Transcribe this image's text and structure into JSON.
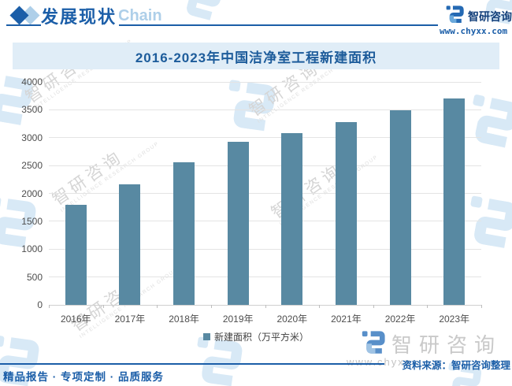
{
  "header": {
    "title": "发展现状",
    "subtitle": "Chain",
    "brand_name": "智研咨询",
    "brand_url": "www.chyxx.com"
  },
  "chart": {
    "title": "2016-2023年中国洁净室工程新建面积",
    "legend": "新建面积（万平方米）"
  },
  "chart_data": {
    "type": "bar",
    "title": "2016-2023年中国洁净室工程新建面积",
    "categories": [
      "2016年",
      "2017年",
      "2018年",
      "2019年",
      "2020年",
      "2021年",
      "2022年",
      "2023年"
    ],
    "series": [
      {
        "name": "新建面积（万平方米）",
        "values": [
          1790,
          2160,
          2560,
          2920,
          3080,
          3280,
          3490,
          3700
        ]
      }
    ],
    "ylabel": "",
    "xlabel": "",
    "ylim": [
      0,
      4000
    ],
    "yticks": [
      0,
      500,
      1000,
      1500,
      2000,
      2500,
      3000,
      3500,
      4000
    ],
    "grid": true,
    "legend_position": "bottom",
    "bar_color": "#5889a2"
  },
  "footer": {
    "services": "精品报告 · 专项定制 · 品质服务",
    "source": "资料来源：智研咨询整理"
  },
  "watermark": {
    "brand": "智研咨询",
    "caption": "INTELLIGENCE RESEARCH GROUP",
    "url_text": "www.chyxx"
  },
  "colors": {
    "accent": "#1b5ea8",
    "light_blue": "#aecfe9",
    "title_band_bg": "#e0edf7",
    "grid": "#e4e4e4",
    "bar": "#5889a2",
    "watermark_blue": "#cfe4f4"
  }
}
